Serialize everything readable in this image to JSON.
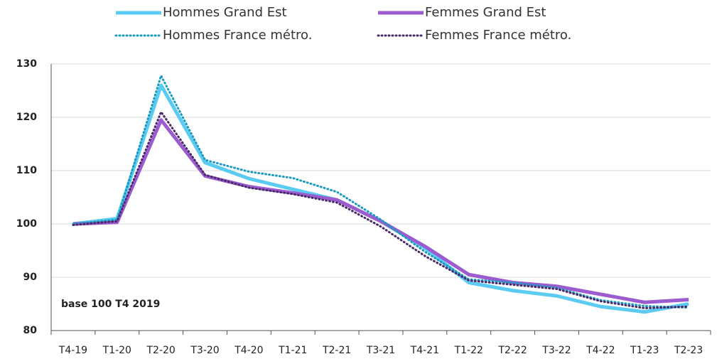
{
  "chart_data": {
    "type": "line",
    "annotation": "base 100 T4 2019",
    "categories": [
      "T4-19",
      "T1-20",
      "T2-20",
      "T3-20",
      "T4-20",
      "T1-21",
      "T2-21",
      "T3-21",
      "T4-21",
      "T1-22",
      "T2-22",
      "T3-22",
      "T4-22",
      "T1-23",
      "T2-23"
    ],
    "series": [
      {
        "name": "Hommes Grand Est",
        "color": "#5ccbf2",
        "dotted": false,
        "values": [
          100,
          101,
          126,
          111.5,
          108.5,
          106.5,
          104.5,
          100.5,
          95.5,
          89,
          87.5,
          86.5,
          84.5,
          83.5,
          85
        ]
      },
      {
        "name": "Femmes Grand Est",
        "color": "#9c5cd0",
        "dotted": false,
        "values": [
          100,
          100.3,
          119.5,
          109,
          107,
          105.8,
          104.5,
          100.5,
          95.8,
          90.5,
          89,
          88.3,
          86.8,
          85.3,
          85.8
        ]
      },
      {
        "name": "Hommes France métro.",
        "color": "#1b9ac0",
        "dotted": true,
        "values": [
          100,
          100.8,
          127.8,
          112,
          109.8,
          108.6,
          106,
          100.8,
          94.8,
          89.6,
          89,
          88,
          85.7,
          84.6,
          84.3
        ]
      },
      {
        "name": "Femmes France métro.",
        "color": "#4a2a6a",
        "dotted": true,
        "values": [
          99.8,
          100.5,
          121,
          109.2,
          106.8,
          105.6,
          104,
          99.5,
          94,
          89.4,
          88.6,
          87.8,
          85.5,
          84.2,
          84.5
        ]
      }
    ],
    "ylim": [
      80,
      130
    ],
    "yticks": [
      80,
      90,
      100,
      110,
      120,
      130
    ],
    "grid": true
  }
}
